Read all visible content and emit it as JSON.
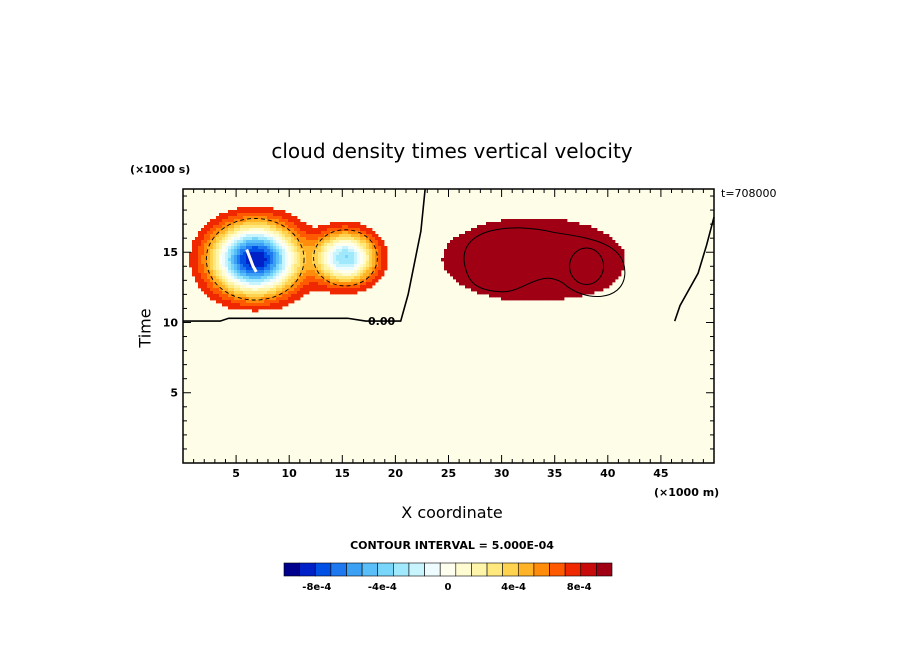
{
  "chart_data": {
    "type": "heatmap",
    "title": "cloud density times vertical velocity",
    "xlabel": "X coordinate",
    "ylabel": "Time",
    "x_unit": "(×1000 m)",
    "y_unit": "(×1000 s)",
    "time_stamp": "t=708000",
    "contour_interval_text": "CONTOUR INTERVAL = 5.000E-04",
    "contour_label": "0.00",
    "xlim": [
      0,
      50
    ],
    "ylim": [
      0,
      19.5
    ],
    "x_ticks": [
      5,
      10,
      15,
      20,
      25,
      30,
      35,
      40,
      45
    ],
    "y_ticks": [
      5,
      10,
      15
    ],
    "background_color": "#fefde8",
    "features": [
      {
        "name": "negative updraft core",
        "x_center": 6.8,
        "y_center": 14.5,
        "x_halfwidth": 3.6,
        "y_halfwidth": 2.2,
        "peak": -0.00095
      },
      {
        "name": "negative secondary cell",
        "x_center": 15.3,
        "y_center": 14.6,
        "x_halfwidth": 2.5,
        "y_halfwidth": 1.6,
        "peak": -0.00065
      },
      {
        "name": "positive main cell",
        "x_center": 33.0,
        "y_center": 14.5,
        "x_halfwidth": 5.2,
        "y_halfwidth": 1.8,
        "peak": 0.00075
      },
      {
        "name": "positive core",
        "x_center": 38.0,
        "y_center": 13.9,
        "x_halfwidth": 1.4,
        "y_halfwidth": 0.9,
        "peak": 0.0009
      }
    ],
    "colorbar": {
      "levels": [
        -0.001,
        -0.00095,
        -0.0009,
        -0.00085,
        -0.0008,
        -0.00075,
        -0.0007,
        -0.00065,
        -0.0006,
        -0.00055,
        -0.0005,
        -0.00045,
        -0.0004,
        -0.00035,
        -0.0003,
        -0.00025,
        -0.0002,
        -0.00015,
        -0.0001,
        -5e-05,
        0,
        5e-05,
        0.0001,
        0.00015,
        0.0002,
        0.00025,
        0.0003,
        0.00035,
        0.0004,
        0.00045,
        0.0005,
        0.00055,
        0.0006,
        0.00065,
        0.0007,
        0.00075,
        0.0008,
        0.00085,
        0.0009,
        0.00095,
        0.001
      ],
      "colors": [
        "#00008c",
        "#0020c8",
        "#0050e6",
        "#1e78f0",
        "#3ca0f5",
        "#5abef8",
        "#78d6fa",
        "#a0e8fc",
        "#c8f4fe",
        "#eefcff",
        "#fffff0",
        "#fffcd2",
        "#fff5aa",
        "#ffe87d",
        "#ffd250",
        "#ffb428",
        "#ff8c0a",
        "#ff5a00",
        "#f02800",
        "#c80a0a",
        "#a00014"
      ],
      "tick_labels": [
        {
          "value": -0.0008,
          "text": "-8e-4"
        },
        {
          "value": -0.0004,
          "text": "-4e-4"
        },
        {
          "value": 0,
          "text": "0"
        },
        {
          "value": 0.0004,
          "text": "4e-4"
        },
        {
          "value": 0.0008,
          "text": "8e-4"
        }
      ]
    }
  }
}
